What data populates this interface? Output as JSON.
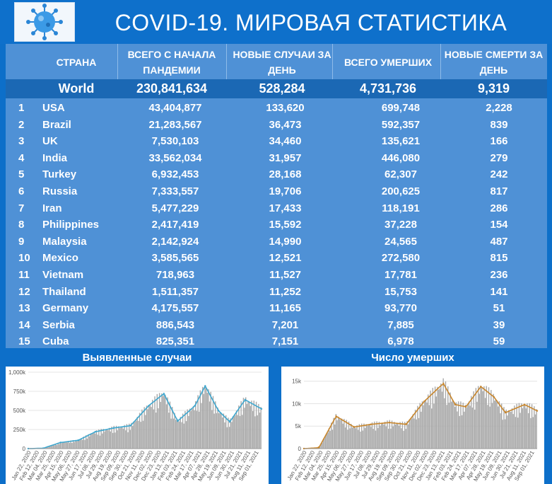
{
  "header": {
    "title": "COVID-19. МИРОВАЯ СТАТИСТИКА",
    "logo_icon": "virus-icon"
  },
  "table": {
    "columns": {
      "country": "СТРАНА",
      "total": "ВСЕГО С НАЧАЛА ПАНДЕМИИ",
      "new": "НОВЫЕ СЛУЧАИ ЗА ДЕНЬ",
      "deaths": "ВСЕГО УМЕРШИХ",
      "new_deaths": "НОВЫЕ СМЕРТИ ЗА ДЕНЬ"
    },
    "world": {
      "label": "World",
      "total": "230,841,634",
      "new": "528,284",
      "deaths": "4,731,736",
      "new_deaths": "9,319"
    },
    "rows": [
      {
        "rank": "1",
        "country": "USA",
        "total": "43,404,877",
        "new": "133,620",
        "deaths": "699,748",
        "new_deaths": "2,228"
      },
      {
        "rank": "2",
        "country": "Brazil",
        "total": "21,283,567",
        "new": "36,473",
        "deaths": "592,357",
        "new_deaths": "839"
      },
      {
        "rank": "3",
        "country": "UK",
        "total": "7,530,103",
        "new": "34,460",
        "deaths": "135,621",
        "new_deaths": "166"
      },
      {
        "rank": "4",
        "country": "India",
        "total": "33,562,034",
        "new": "31,957",
        "deaths": "446,080",
        "new_deaths": "279"
      },
      {
        "rank": "5",
        "country": "Turkey",
        "total": "6,932,453",
        "new": "28,168",
        "deaths": "62,307",
        "new_deaths": "242"
      },
      {
        "rank": "6",
        "country": "Russia",
        "total": "7,333,557",
        "new": "19,706",
        "deaths": "200,625",
        "new_deaths": "817"
      },
      {
        "rank": "7",
        "country": "Iran",
        "total": "5,477,229",
        "new": "17,433",
        "deaths": "118,191",
        "new_deaths": "286"
      },
      {
        "rank": "8",
        "country": "Philippines",
        "total": "2,417,419",
        "new": "15,592",
        "deaths": "37,228",
        "new_deaths": "154"
      },
      {
        "rank": "9",
        "country": "Malaysia",
        "total": "2,142,924",
        "new": "14,990",
        "deaths": "24,565",
        "new_deaths": "487"
      },
      {
        "rank": "10",
        "country": "Mexico",
        "total": "3,585,565",
        "new": "12,521",
        "deaths": "272,580",
        "new_deaths": "815"
      },
      {
        "rank": "11",
        "country": "Vietnam",
        "total": "718,963",
        "new": "11,527",
        "deaths": "17,781",
        "new_deaths": "236"
      },
      {
        "rank": "12",
        "country": "Thailand",
        "total": "1,511,357",
        "new": "11,252",
        "deaths": "15,753",
        "new_deaths": "141"
      },
      {
        "rank": "13",
        "country": "Germany",
        "total": "4,175,557",
        "new": "11,165",
        "deaths": "93,770",
        "new_deaths": "51"
      },
      {
        "rank": "14",
        "country": "Serbia",
        "total": "886,543",
        "new": "7,201",
        "deaths": "7,885",
        "new_deaths": "39"
      },
      {
        "rank": "15",
        "country": "Cuba",
        "total": "825,351",
        "new": "7,151",
        "deaths": "6,978",
        "new_deaths": "59"
      }
    ]
  },
  "colors": {
    "background": "#0d6fc9",
    "table": "#4f91d6",
    "world_row": "#1b68b4",
    "cases_line": "#3ea7cf",
    "deaths_line": "#c8862c",
    "bars": "#a9a9a9"
  },
  "chart_data": [
    {
      "type": "bar",
      "title": "Выявленные случаи",
      "yticks": [
        "0",
        "250k",
        "500k",
        "750k",
        "1,000k"
      ],
      "ylim": [
        0,
        1000000
      ],
      "x": [
        "2020-01-22",
        "2020-03-01",
        "2020-04-15",
        "2020-06-01",
        "2020-07-15",
        "2020-09-01",
        "2020-10-15",
        "2020-12-01",
        "2021-01-10",
        "2021-02-15",
        "2021-04-01",
        "2021-04-28",
        "2021-06-01",
        "2021-07-01",
        "2021-08-10",
        "2021-09-22"
      ],
      "xticklabels": [
        "Jan 22, 2020",
        "Feb 12, 2020",
        "Mar 04, 2020",
        "Mar 25, 2020",
        "Apr 15, 2020",
        "May 06, 2020",
        "May 27, 2020",
        "Jun 17, 2020",
        "Jul 08, 2020",
        "Jul 29, 2020",
        "Aug 19, 2020",
        "Sep 09, 2020",
        "Sep 30, 2020",
        "Oct 21, 2020",
        "Nov 11, 2020",
        "Dec 02, 2020",
        "Dec 23, 2020",
        "Jan 13, 2021",
        "Feb 03, 2021",
        "Feb 24, 2021",
        "Mar 17, 2021",
        "Apr 07, 2021",
        "Apr 28, 2021",
        "May 19, 2021",
        "Jun 09, 2021",
        "Jun 30, 2021",
        "Jul 21, 2021",
        "Aug 11, 2021",
        "Sep 01, 2021"
      ],
      "series": [
        {
          "values": [
            0,
            5000,
            80000,
            110000,
            220000,
            270000,
            300000,
            560000,
            720000,
            360000,
            560000,
            820000,
            500000,
            350000,
            640000,
            520000
          ]
        }
      ]
    },
    {
      "type": "bar",
      "title": "Число умерших",
      "yticks": [
        "0",
        "5k",
        "10k",
        "15k"
      ],
      "ylim": [
        0,
        17000
      ],
      "x": [
        "2020-01-22",
        "2020-03-01",
        "2020-04-15",
        "2020-06-01",
        "2020-07-15",
        "2020-09-01",
        "2020-10-15",
        "2020-12-01",
        "2021-01-20",
        "2021-02-20",
        "2021-03-20",
        "2021-04-28",
        "2021-06-01",
        "2021-07-01",
        "2021-08-20",
        "2021-09-22"
      ],
      "xticklabels": [
        "Jan 22, 2020",
        "Feb 12, 2020",
        "Mar 04, 2020",
        "Mar 25, 2020",
        "Apr 15, 2020",
        "May 06, 2020",
        "May 27, 2020",
        "Jun 17, 2020",
        "Jul 08, 2020",
        "Jul 29, 2020",
        "Aug 19, 2020",
        "Sep 09, 2020",
        "Sep 30, 2020",
        "Oct 21, 2020",
        "Nov 11, 2020",
        "Dec 02, 2020",
        "Dec 23, 2020",
        "Jan 13, 2021",
        "Feb 03, 2021",
        "Feb 24, 2021",
        "Mar 17, 2021",
        "Apr 07, 2021",
        "Apr 28, 2021",
        "May 19, 2021",
        "Jun 09, 2021",
        "Jun 30, 2021",
        "Jul 21, 2021",
        "Aug 11, 2021",
        "Sep 01, 2021"
      ],
      "series": [
        {
          "values": [
            0,
            200,
            7200,
            4800,
            5400,
            5800,
            5400,
            10500,
            14500,
            9800,
            9300,
            13800,
            11500,
            8000,
            9800,
            8400
          ]
        }
      ]
    }
  ]
}
